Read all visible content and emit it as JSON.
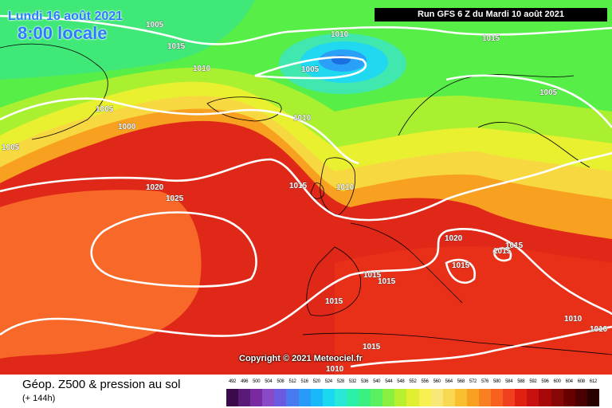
{
  "header": {
    "date_line": "Lundi 16 août 2021",
    "time_line": "8:00 locale",
    "run_info": "Run GFS 6 Z du Mardi 10 août 2021"
  },
  "copyright": "Copyright © 2021 Meteociel.fr",
  "footer": {
    "title": "Géop. Z500 & pression au sol",
    "subtitle": "(+ 144h)"
  },
  "legend": {
    "labels": [
      "492",
      "496",
      "500",
      "504",
      "508",
      "512",
      "516",
      "520",
      "524",
      "528",
      "532",
      "536",
      "540",
      "544",
      "548",
      "552",
      "556",
      "560",
      "564",
      "568",
      "572",
      "576",
      "580",
      "584",
      "588",
      "592",
      "596",
      "600",
      "604",
      "608",
      "612"
    ],
    "colors": [
      "#3a0a4a",
      "#5a1a78",
      "#7a2aa0",
      "#8a4ac8",
      "#6a5ae0",
      "#4a7af0",
      "#2a9af8",
      "#1ab8f8",
      "#1ad8f0",
      "#2ae8d8",
      "#2af0a8",
      "#3af080",
      "#5af060",
      "#8af040",
      "#b8f030",
      "#e0f030",
      "#f8f050",
      "#f8e878",
      "#f8d850",
      "#f8c030",
      "#f8a020",
      "#f88020",
      "#f86020",
      "#f04020",
      "#e02010",
      "#c81010",
      "#a80808",
      "#880808",
      "#680000",
      "#480000",
      "#280000"
    ]
  },
  "isobars": [
    {
      "id": "1005-nw",
      "text": "1005"
    },
    {
      "id": "1015-nw",
      "text": "1015"
    },
    {
      "id": "1010-gl",
      "text": "1010"
    },
    {
      "id": "1010-north",
      "text": "1010"
    },
    {
      "id": "1005-low",
      "text": "1005"
    },
    {
      "id": "1015-ne",
      "text": "1015"
    },
    {
      "id": "1005-scand",
      "text": "1005"
    },
    {
      "id": "1005-w",
      "text": "1005"
    },
    {
      "id": "1000-w",
      "text": "1000"
    },
    {
      "id": "1005-far-w",
      "text": "1005"
    },
    {
      "id": "1010-ice",
      "text": "1010"
    },
    {
      "id": "1020-atl",
      "text": "1020"
    },
    {
      "id": "1025-atl",
      "text": "1025"
    },
    {
      "id": "1015-irl",
      "text": "1015"
    },
    {
      "id": "1010-uk",
      "text": "1010"
    },
    {
      "id": "1020-alps",
      "text": "1020"
    },
    {
      "id": "1015-eur",
      "text": "1015"
    },
    {
      "id": "1015-eur2",
      "text": "1015"
    },
    {
      "id": "1015-ita",
      "text": "1015"
    },
    {
      "id": "1015-iber1",
      "text": "1015"
    },
    {
      "id": "1015-iber2",
      "text": "1015"
    },
    {
      "id": "1015-iber3",
      "text": "1015"
    },
    {
      "id": "1010-grc",
      "text": "1010"
    },
    {
      "id": "1010-east",
      "text": "1010"
    },
    {
      "id": "1015-afr",
      "text": "1015"
    },
    {
      "id": "1010-afr",
      "text": "1010"
    }
  ]
}
